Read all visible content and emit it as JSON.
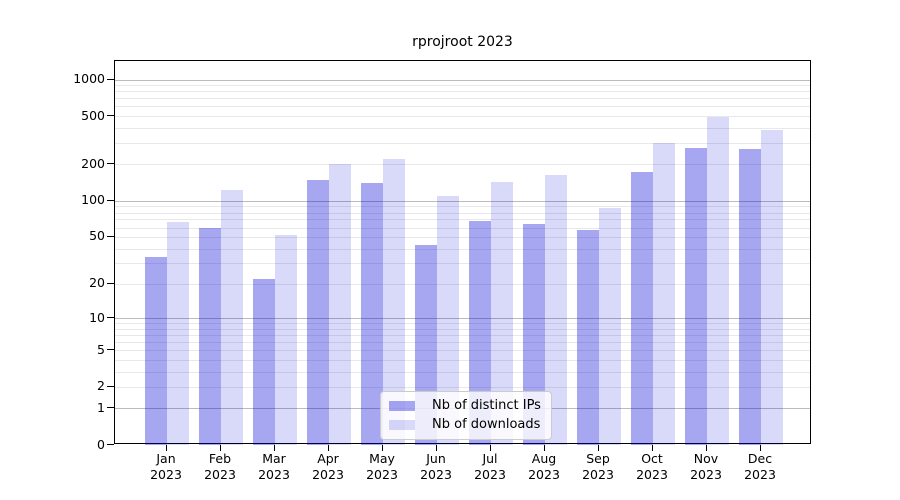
{
  "title": "rprojroot 2023",
  "legend": {
    "items": [
      {
        "label": "Nb of distinct IPs"
      },
      {
        "label": "Nb of downloads"
      }
    ]
  },
  "colors": {
    "bar_distinct_ips": "rgba(0,0,216,0.35)",
    "bar_downloads": "rgba(0,0,216,0.15)",
    "grid_major": "#bbbbbb",
    "grid_minor": "#e8e8e8",
    "axis": "#000000"
  },
  "chart_data": {
    "type": "bar",
    "title": "rprojroot 2023",
    "categories": [
      "Jan",
      "Feb",
      "Mar",
      "Apr",
      "May",
      "Jun",
      "Jul",
      "Aug",
      "Sep",
      "Oct",
      "Nov",
      "Dec"
    ],
    "year_label": "2023",
    "series": [
      {
        "name": "Nb of distinct IPs",
        "values": [
          34,
          59,
          22,
          149,
          141,
          43,
          68,
          64,
          57,
          174,
          273,
          268
        ]
      },
      {
        "name": "Nb of downloads",
        "values": [
          67,
          123,
          52,
          201,
          221,
          110,
          143,
          164,
          88,
          300,
          489,
          387
        ]
      }
    ],
    "y_scale": "log10(1+x)",
    "y_ticks": [
      0,
      1,
      2,
      5,
      10,
      20,
      50,
      100,
      200,
      500,
      1000
    ],
    "y_minor_gridlines": [
      2,
      3,
      4,
      5,
      6,
      7,
      8,
      9,
      20,
      30,
      40,
      50,
      60,
      70,
      80,
      90,
      200,
      300,
      400,
      500,
      600,
      700,
      800,
      900
    ],
    "y_major_gridlines": [
      1,
      10,
      100,
      1000
    ],
    "ylim": [
      0,
      1430
    ],
    "xlabel": "",
    "ylabel": "",
    "grid": "both-horizontal",
    "legend_position": "lower center"
  }
}
